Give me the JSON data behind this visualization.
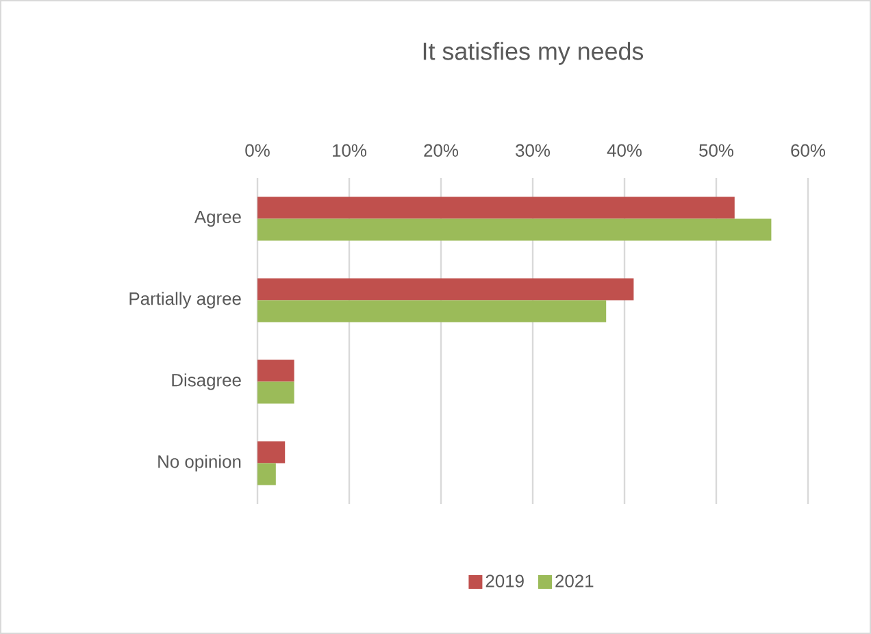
{
  "chart_data": {
    "type": "bar",
    "orientation": "horizontal",
    "title": "It satisfies my needs",
    "categories": [
      "Agree",
      "Partially agree",
      "Disagree",
      "No opinion"
    ],
    "series": [
      {
        "name": "2019",
        "color": "#c0504d",
        "values": [
          52,
          41,
          4,
          3
        ]
      },
      {
        "name": "2021",
        "color": "#9bbb59",
        "values": [
          56,
          38,
          4,
          2
        ]
      }
    ],
    "xlim": [
      0,
      60
    ],
    "xticks": [
      {
        "value": 0,
        "label": "0%"
      },
      {
        "value": 10,
        "label": "10%"
      },
      {
        "value": 20,
        "label": "20%"
      },
      {
        "value": 30,
        "label": "30%"
      },
      {
        "value": 40,
        "label": "40%"
      },
      {
        "value": 50,
        "label": "50%"
      },
      {
        "value": 60,
        "label": "60%"
      }
    ],
    "grid": "x",
    "legend": "bottom"
  }
}
